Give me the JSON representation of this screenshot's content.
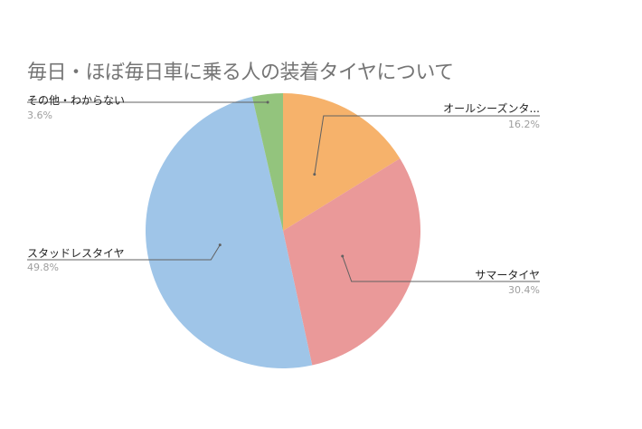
{
  "chart_data": {
    "type": "pie",
    "title": "毎日・ほぼ毎日車に乗る人の装着タイヤについて",
    "start_angle": "top",
    "direction": "clockwise",
    "legend": "none (leader-line labels)",
    "slices": [
      {
        "label": "オールシーズンタ...",
        "value": 16.2,
        "value_label": "16.2%",
        "color": "#f6b26b"
      },
      {
        "label": "サマータイヤ",
        "value": 30.4,
        "value_label": "30.4%",
        "color": "#ea9999"
      },
      {
        "label": "スタッドレスタイヤ",
        "value": 49.8,
        "value_label": "49.8%",
        "color": "#9fc5e8"
      },
      {
        "label": "その他・わからない",
        "value": 3.6,
        "value_label": "3.6%",
        "color": "#93c47d"
      }
    ]
  }
}
